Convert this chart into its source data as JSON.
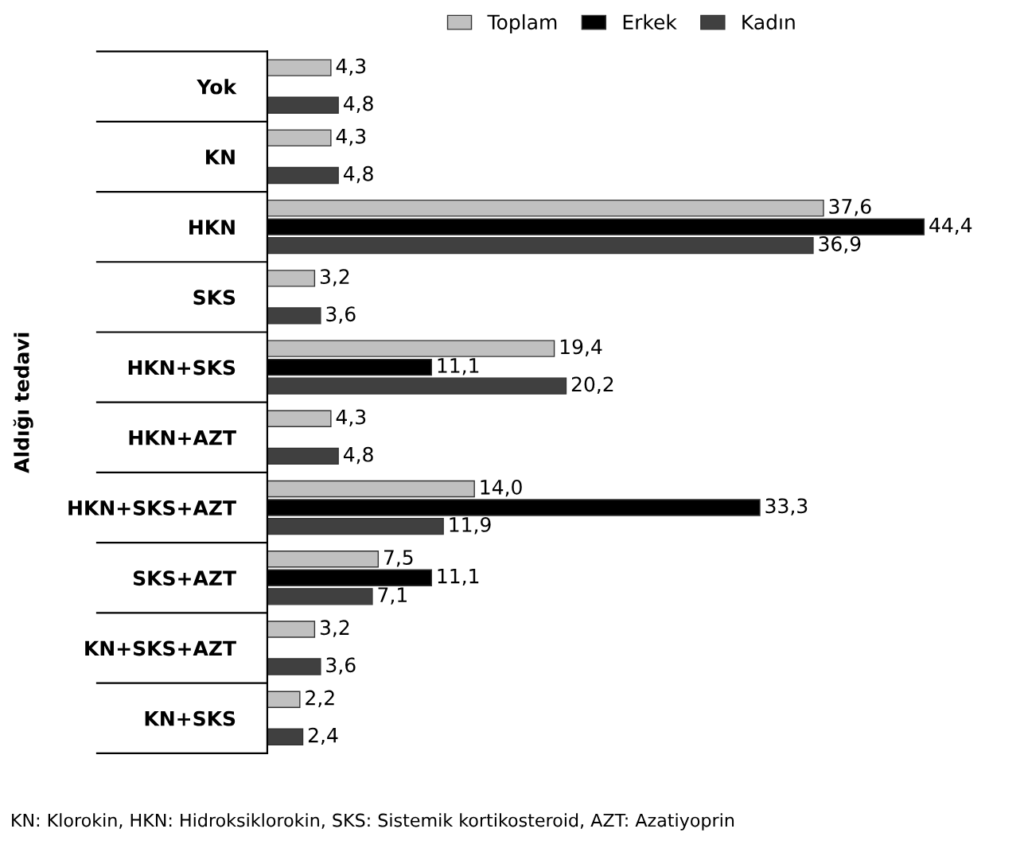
{
  "chart_data": {
    "type": "bar",
    "orientation": "horizontal",
    "ylabel": "Aldığı tedavi",
    "categories": [
      "Yok",
      "KN",
      "HKN",
      "SKS",
      "HKN+SKS",
      "HKN+AZT",
      "HKN+SKS+AZT",
      "SKS+AZT",
      "KN+SKS+AZT",
      "KN+SKS"
    ],
    "series": [
      {
        "name": "Toplam",
        "color": "#c0c0c0",
        "values": [
          4.3,
          4.3,
          37.6,
          3.2,
          19.4,
          4.3,
          14.0,
          7.5,
          3.2,
          2.2
        ],
        "value_labels": [
          "4,3",
          "4,3",
          "37,6",
          "3,2",
          "19,4",
          "4,3",
          "14,0",
          "7,5",
          "3,2",
          "2,2"
        ]
      },
      {
        "name": "Erkek",
        "color": "#000000",
        "values": [
          null,
          null,
          44.4,
          null,
          11.1,
          null,
          33.3,
          11.1,
          null,
          null
        ],
        "value_labels": [
          null,
          null,
          "44,4",
          null,
          "11,1",
          null,
          "33,3",
          "11,1",
          null,
          null
        ]
      },
      {
        "name": "Kadın",
        "color": "#404040",
        "values": [
          4.8,
          4.8,
          36.9,
          3.6,
          20.2,
          4.8,
          11.9,
          7.1,
          3.6,
          2.4
        ],
        "value_labels": [
          "4,8",
          "4,8",
          "36,9",
          "3,6",
          "20,2",
          "4,8",
          "11,9",
          "7,1",
          "3,6",
          "2,4"
        ]
      }
    ],
    "legend": "top",
    "annotations": [
      "KN: Klorokin, HKN: Hidroksiklorokin, SKS: Sistemik kortikosteroid, AZT: Azatiyoprin"
    ]
  }
}
